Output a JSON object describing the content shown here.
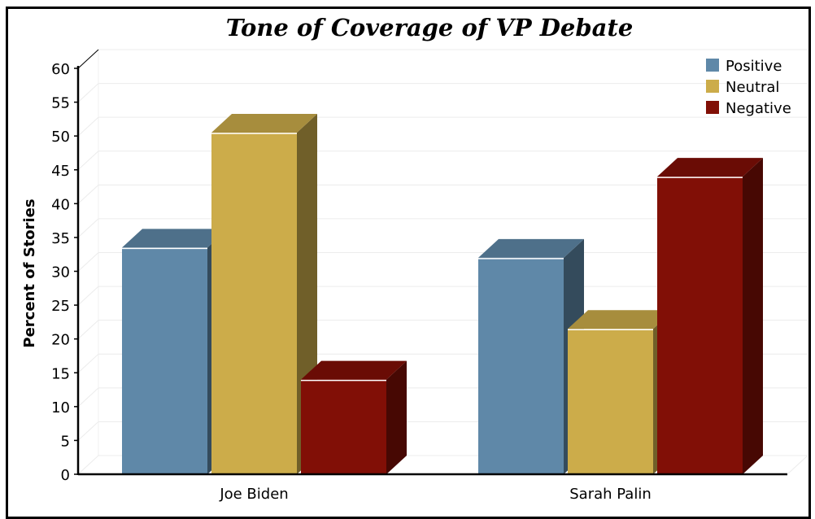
{
  "chart_data": {
    "type": "bar",
    "title": "Tone of Coverage of VP Debate",
    "xlabel": "",
    "ylabel": "Percent of Stories",
    "categories": [
      "Joe Biden",
      "Sarah Palin"
    ],
    "series": [
      {
        "name": "Positive",
        "values": [
          33.5,
          32
        ],
        "color": "#5f88a8"
      },
      {
        "name": "Neutral",
        "values": [
          50.5,
          21.5
        ],
        "color": "#ccac4a"
      },
      {
        "name": "Negative",
        "values": [
          14,
          44
        ],
        "color": "#810f06"
      }
    ],
    "ylim": [
      0,
      60
    ],
    "yticks": [
      "0",
      "5",
      "10",
      "15",
      "20",
      "25",
      "30",
      "35",
      "40",
      "45",
      "50",
      "55",
      "60"
    ],
    "grid": true,
    "legend_position": "top-right",
    "style": "3d"
  }
}
